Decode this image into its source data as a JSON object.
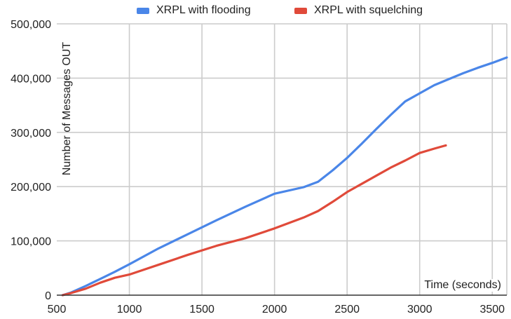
{
  "chart_data": {
    "type": "line",
    "title": "",
    "xlabel": "Time (seconds)",
    "ylabel": "Number of Messages OUT",
    "xlim": [
      500,
      3600
    ],
    "ylim": [
      0,
      500000
    ],
    "x_ticks": [
      500,
      1000,
      1500,
      2000,
      2500,
      3000,
      3500
    ],
    "x_tick_labels": [
      "500",
      "1000",
      "1500",
      "2000",
      "2500",
      "3000",
      "3500"
    ],
    "y_ticks": [
      0,
      100000,
      200000,
      300000,
      400000,
      500000
    ],
    "y_tick_labels": [
      "0",
      "100,000",
      "200,000",
      "300,000",
      "400,000",
      "500,000"
    ],
    "grid": true,
    "legend_position": "top-center",
    "series": [
      {
        "name": "XRPL with flooding",
        "color": "#4a86e8",
        "points": [
          [
            540,
            0
          ],
          [
            600,
            5000
          ],
          [
            700,
            17000
          ],
          [
            800,
            30000
          ],
          [
            900,
            43000
          ],
          [
            1000,
            57000
          ],
          [
            1200,
            86000
          ],
          [
            1400,
            112000
          ],
          [
            1600,
            138000
          ],
          [
            1800,
            163000
          ],
          [
            2000,
            187000
          ],
          [
            2200,
            199000
          ],
          [
            2300,
            209000
          ],
          [
            2400,
            230000
          ],
          [
            2500,
            253000
          ],
          [
            2600,
            279000
          ],
          [
            2700,
            306000
          ],
          [
            2800,
            332000
          ],
          [
            2900,
            357000
          ],
          [
            3000,
            372000
          ],
          [
            3100,
            387000
          ],
          [
            3200,
            398000
          ],
          [
            3300,
            409000
          ],
          [
            3400,
            419000
          ],
          [
            3500,
            428000
          ],
          [
            3600,
            438000
          ]
        ]
      },
      {
        "name": "XRPL with squelching",
        "color": "#e04a3a",
        "points": [
          [
            540,
            0
          ],
          [
            600,
            4000
          ],
          [
            700,
            12000
          ],
          [
            800,
            23000
          ],
          [
            900,
            32000
          ],
          [
            1000,
            38000
          ],
          [
            1200,
            56000
          ],
          [
            1400,
            74000
          ],
          [
            1600,
            91000
          ],
          [
            1800,
            105000
          ],
          [
            2000,
            123000
          ],
          [
            2200,
            143000
          ],
          [
            2300,
            155000
          ],
          [
            2400,
            172000
          ],
          [
            2500,
            190000
          ],
          [
            2600,
            205000
          ],
          [
            2700,
            220000
          ],
          [
            2800,
            235000
          ],
          [
            2900,
            248000
          ],
          [
            3000,
            262000
          ],
          [
            3100,
            270000
          ],
          [
            3180,
            276000
          ]
        ]
      }
    ]
  }
}
